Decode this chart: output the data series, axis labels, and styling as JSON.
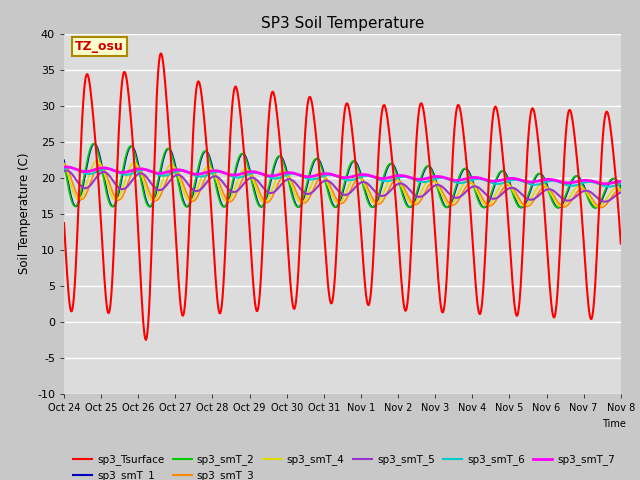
{
  "title": "SP3 Soil Temperature",
  "ylabel": "Soil Temperature (C)",
  "xlabel": "Time",
  "ylim": [
    -10,
    40
  ],
  "tz_label": "TZ_osu",
  "x_tick_labels": [
    "Oct 24",
    "Oct 25",
    "Oct 26",
    "Oct 27",
    "Oct 28",
    "Oct 29",
    "Oct 30",
    "Oct 31",
    "Nov 1",
    "Nov 2",
    "Nov 3",
    "Nov 4",
    "Nov 5",
    "Nov 6",
    "Nov 7",
    "Nov 8"
  ],
  "series": [
    {
      "name": "sp3_Tsurface",
      "color": "#ff0000"
    },
    {
      "name": "sp3_smT_1",
      "color": "#0000bb"
    },
    {
      "name": "sp3_smT_2",
      "color": "#00cc00"
    },
    {
      "name": "sp3_smT_3",
      "color": "#ff8800"
    },
    {
      "name": "sp3_smT_4",
      "color": "#dddd00"
    },
    {
      "name": "sp3_smT_5",
      "color": "#9933cc"
    },
    {
      "name": "sp3_smT_6",
      "color": "#00cccc"
    },
    {
      "name": "sp3_smT_7",
      "color": "#ff00ff"
    }
  ]
}
